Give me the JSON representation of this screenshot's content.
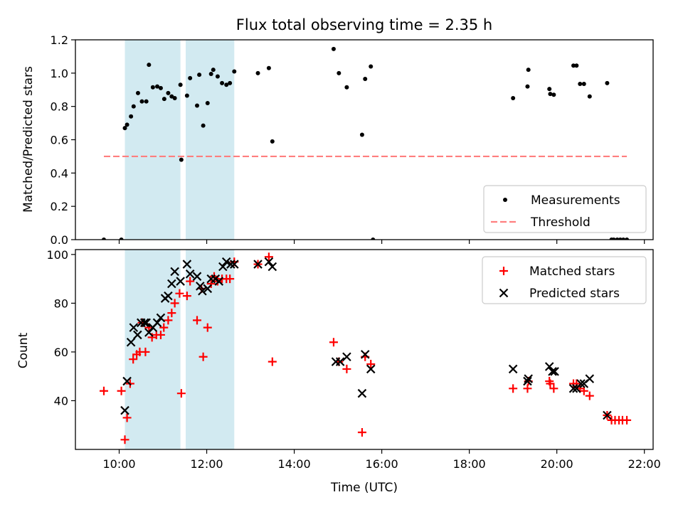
{
  "title": "Flux total observing time = 2.35 h",
  "colors": {
    "shade": "#add8e6",
    "measure": "#000000",
    "threshold": "#ff7f7f",
    "matched": "#ff0000",
    "predicted": "#000000"
  },
  "chart_data": [
    {
      "type": "scatter",
      "ylabel": "Matched/Predicted stars",
      "xlabel": "",
      "xlim": [
        9.0,
        22.2
      ],
      "ylim": [
        0.0,
        1.2
      ],
      "yticks": [
        "0.0",
        "0.2",
        "0.4",
        "0.6",
        "0.8",
        "1.0",
        "1.2"
      ],
      "ytick_values": [
        0.0,
        0.2,
        0.4,
        0.6,
        0.8,
        1.0,
        1.2
      ],
      "shaded_spans": [
        [
          10.13,
          11.4
        ],
        [
          11.52,
          12.63
        ]
      ],
      "legend": {
        "placement": "lower-right",
        "entries": [
          "Measurements",
          "Threshold"
        ]
      },
      "threshold": {
        "name": "Threshold",
        "x": [
          9.65,
          21.6
        ],
        "y": 0.5
      },
      "series": [
        {
          "name": "Measurements",
          "marker": "dot",
          "points": [
            [
              9.65,
              0.0
            ],
            [
              10.05,
              0.0
            ],
            [
              10.13,
              0.67
            ],
            [
              10.18,
              0.69
            ],
            [
              10.27,
              0.74
            ],
            [
              10.33,
              0.8
            ],
            [
              10.43,
              0.88
            ],
            [
              10.52,
              0.83
            ],
            [
              10.62,
              0.83
            ],
            [
              10.68,
              1.05
            ],
            [
              10.77,
              0.915
            ],
            [
              10.87,
              0.92
            ],
            [
              10.95,
              0.91
            ],
            [
              11.03,
              0.845
            ],
            [
              11.12,
              0.88
            ],
            [
              11.2,
              0.86
            ],
            [
              11.27,
              0.85
            ],
            [
              11.4,
              0.93
            ],
            [
              11.42,
              0.48
            ],
            [
              11.55,
              0.865
            ],
            [
              11.62,
              0.97
            ],
            [
              11.78,
              0.805
            ],
            [
              11.83,
              0.99
            ],
            [
              11.92,
              0.685
            ],
            [
              12.02,
              0.82
            ],
            [
              12.1,
              0.995
            ],
            [
              12.15,
              1.02
            ],
            [
              12.25,
              0.98
            ],
            [
              12.35,
              0.94
            ],
            [
              12.45,
              0.93
            ],
            [
              12.53,
              0.94
            ],
            [
              12.63,
              1.01
            ],
            [
              13.17,
              1.0
            ],
            [
              13.42,
              1.03
            ],
            [
              13.5,
              0.59
            ],
            [
              14.9,
              1.145
            ],
            [
              15.02,
              1.0
            ],
            [
              15.2,
              0.915
            ],
            [
              15.55,
              0.63
            ],
            [
              15.62,
              0.965
            ],
            [
              15.75,
              1.04
            ],
            [
              15.8,
              0.0
            ],
            [
              19.0,
              0.85
            ],
            [
              19.33,
              0.92
            ],
            [
              19.35,
              1.02
            ],
            [
              19.83,
              0.905
            ],
            [
              19.85,
              0.875
            ],
            [
              19.93,
              0.87
            ],
            [
              20.38,
              1.045
            ],
            [
              20.45,
              1.045
            ],
            [
              20.53,
              0.935
            ],
            [
              20.62,
              0.935
            ],
            [
              20.75,
              0.86
            ],
            [
              21.15,
              0.94
            ],
            [
              21.25,
              0.0
            ],
            [
              21.3,
              0.0
            ],
            [
              21.38,
              0.0
            ],
            [
              21.45,
              0.0
            ],
            [
              21.52,
              0.0
            ],
            [
              21.6,
              0.0
            ]
          ]
        }
      ]
    },
    {
      "type": "scatter",
      "ylabel": "Count",
      "xlabel": "Time (UTC)",
      "xlim": [
        9.0,
        22.2
      ],
      "ylim": [
        20,
        102
      ],
      "xticks": [
        "10:00",
        "12:00",
        "14:00",
        "16:00",
        "18:00",
        "20:00",
        "22:00"
      ],
      "xtick_values": [
        10,
        12,
        14,
        16,
        18,
        20,
        22
      ],
      "yticks": [
        "40",
        "60",
        "80",
        "100"
      ],
      "ytick_values": [
        40,
        60,
        80,
        100
      ],
      "shaded_spans": [
        [
          10.13,
          11.4
        ],
        [
          11.52,
          12.63
        ]
      ],
      "legend": {
        "placement": "top-right",
        "entries": [
          "Matched stars",
          "Predicted stars"
        ]
      },
      "series": [
        {
          "name": "Matched stars",
          "marker": "plus",
          "points": [
            [
              9.65,
              44
            ],
            [
              10.05,
              44
            ],
            [
              10.13,
              24
            ],
            [
              10.18,
              33
            ],
            [
              10.25,
              47
            ],
            [
              10.32,
              57
            ],
            [
              10.4,
              59
            ],
            [
              10.47,
              60
            ],
            [
              10.52,
              72
            ],
            [
              10.6,
              60
            ],
            [
              10.68,
              70
            ],
            [
              10.75,
              66
            ],
            [
              10.85,
              67
            ],
            [
              10.95,
              67
            ],
            [
              11.02,
              70
            ],
            [
              11.12,
              73
            ],
            [
              11.2,
              76
            ],
            [
              11.27,
              80
            ],
            [
              11.38,
              84
            ],
            [
              11.42,
              43
            ],
            [
              11.55,
              83
            ],
            [
              11.62,
              89
            ],
            [
              11.78,
              73
            ],
            [
              11.88,
              86
            ],
            [
              11.92,
              58
            ],
            [
              12.02,
              70
            ],
            [
              12.1,
              88
            ],
            [
              12.17,
              91
            ],
            [
              12.25,
              89
            ],
            [
              12.35,
              90
            ],
            [
              12.45,
              90
            ],
            [
              12.53,
              90
            ],
            [
              12.63,
              97
            ],
            [
              13.17,
              96
            ],
            [
              13.42,
              99
            ],
            [
              13.5,
              56
            ],
            [
              14.9,
              64
            ],
            [
              15.02,
              56
            ],
            [
              15.2,
              53
            ],
            [
              15.55,
              27
            ],
            [
              15.62,
              58
            ],
            [
              15.75,
              55
            ],
            [
              19.0,
              45
            ],
            [
              19.33,
              45
            ],
            [
              19.35,
              48
            ],
            [
              19.83,
              48
            ],
            [
              19.85,
              47
            ],
            [
              19.93,
              45
            ],
            [
              20.38,
              47
            ],
            [
              20.45,
              47
            ],
            [
              20.53,
              45
            ],
            [
              20.62,
              44
            ],
            [
              20.75,
              42
            ],
            [
              21.15,
              34
            ],
            [
              21.25,
              32
            ],
            [
              21.33,
              32
            ],
            [
              21.42,
              32
            ],
            [
              21.5,
              32
            ],
            [
              21.6,
              32
            ]
          ]
        },
        {
          "name": "Predicted stars",
          "marker": "x",
          "points": [
            [
              10.13,
              36
            ],
            [
              10.18,
              48
            ],
            [
              10.27,
              64
            ],
            [
              10.33,
              70
            ],
            [
              10.42,
              67
            ],
            [
              10.5,
              72
            ],
            [
              10.58,
              72
            ],
            [
              10.62,
              72
            ],
            [
              10.68,
              68
            ],
            [
              10.77,
              70
            ],
            [
              10.87,
              72
            ],
            [
              10.95,
              74
            ],
            [
              11.05,
              82
            ],
            [
              11.12,
              83
            ],
            [
              11.2,
              88
            ],
            [
              11.27,
              93
            ],
            [
              11.4,
              89
            ],
            [
              11.55,
              96
            ],
            [
              11.62,
              92
            ],
            [
              11.78,
              91
            ],
            [
              11.85,
              87
            ],
            [
              11.9,
              85
            ],
            [
              12.02,
              86
            ],
            [
              12.1,
              90
            ],
            [
              12.2,
              90
            ],
            [
              12.28,
              89
            ],
            [
              12.37,
              95
            ],
            [
              12.45,
              97
            ],
            [
              12.55,
              96
            ],
            [
              12.63,
              96
            ],
            [
              13.17,
              96
            ],
            [
              13.42,
              97
            ],
            [
              13.5,
              95
            ],
            [
              14.95,
              56
            ],
            [
              15.05,
              56
            ],
            [
              15.2,
              58
            ],
            [
              15.55,
              43
            ],
            [
              15.62,
              59
            ],
            [
              15.75,
              53
            ],
            [
              19.0,
              53
            ],
            [
              19.33,
              48
            ],
            [
              19.35,
              49
            ],
            [
              19.83,
              54
            ],
            [
              19.9,
              52
            ],
            [
              19.95,
              52
            ],
            [
              20.38,
              45
            ],
            [
              20.45,
              45
            ],
            [
              20.55,
              47
            ],
            [
              20.62,
              47
            ],
            [
              20.75,
              49
            ],
            [
              21.15,
              34
            ]
          ]
        }
      ]
    }
  ]
}
